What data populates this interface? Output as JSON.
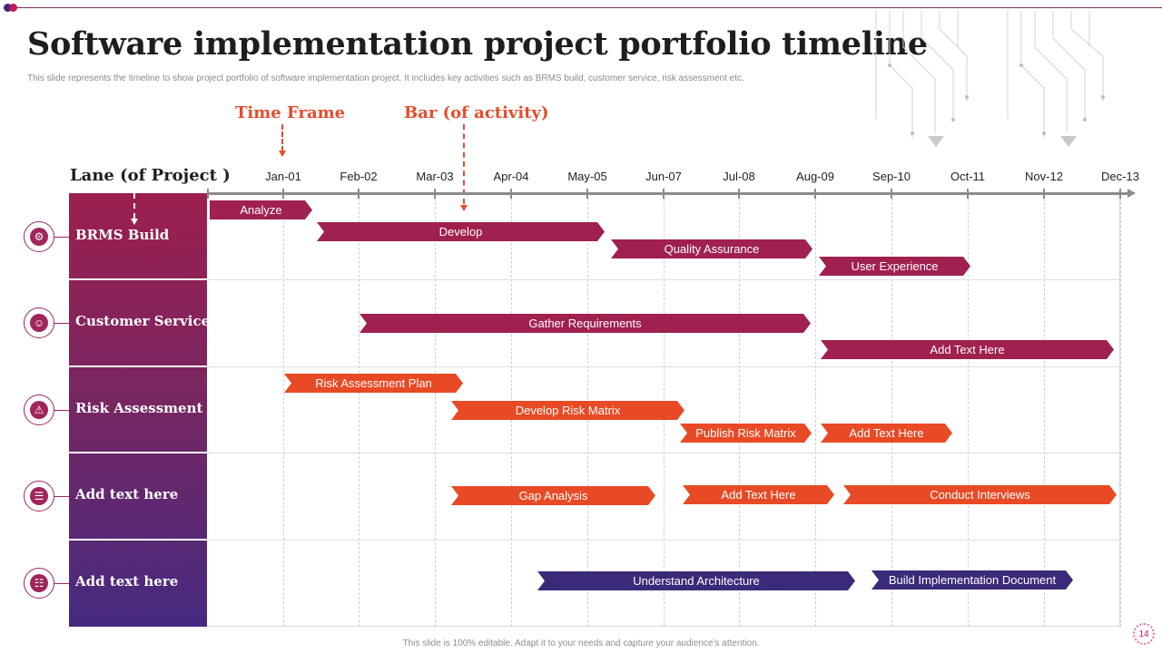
{
  "slide": {
    "title": "Software implementation project portfolio timeline",
    "subtitle": "This slide represents the timeline  to show project portfolio of software implementation  project. It includes key activities such as BRMS  build,  customer service, risk assessment etc.",
    "footer": "This slide is 100% editable.  Adapt it to your needs and capture your audience’s attention.",
    "page_number": "14"
  },
  "callouts": {
    "time_frame": "Time Frame",
    "bar_of_activity": "Bar (of activity)",
    "lane_of_project": "Lane (of Project )"
  },
  "timeline": {
    "months": [
      "Jan-01",
      "Feb-02",
      "Mar-03",
      "Apr-04",
      "May-05",
      "Jun-07",
      "Jul-08",
      "Aug-09",
      "Sep-10",
      "Oct-11",
      "Nov-12",
      "Dec-13"
    ]
  },
  "lanes": [
    {
      "label": "BRMS Build",
      "icon": "gear-icon"
    },
    {
      "label": "Customer Service",
      "icon": "user-icon"
    },
    {
      "label": "Risk Assessment",
      "icon": "warning-icon"
    },
    {
      "label": "Add text here",
      "icon": "document-icon"
    },
    {
      "label": "Add text here",
      "icon": "clipboard-icon"
    }
  ],
  "bars": [
    {
      "lane": 0,
      "label": "Analyze",
      "start": "Jan",
      "end": "Jan-01",
      "color": "#a0204f"
    },
    {
      "lane": 0,
      "label": "Develop",
      "start": "Jan-01",
      "end": "May-05",
      "color": "#a0204f"
    },
    {
      "lane": 0,
      "label": "Quality Assurance",
      "start": "May-05",
      "end": "Aug-09",
      "color": "#a0204f"
    },
    {
      "lane": 0,
      "label": "User Experience",
      "start": "Aug-09",
      "end": "Oct-11",
      "color": "#a0204f"
    },
    {
      "lane": 1,
      "label": "Gather Requirements",
      "start": "Feb-02",
      "end": "Aug-09",
      "color": "#a0204f"
    },
    {
      "lane": 1,
      "label": "Add Text Here",
      "start": "Aug-09",
      "end": "Dec-13",
      "color": "#a0204f"
    },
    {
      "lane": 2,
      "label": "Risk Assessment Plan",
      "start": "Jan-01",
      "end": "Mar-03",
      "color": "#e84a25"
    },
    {
      "lane": 2,
      "label": "Develop  Risk Matrix",
      "start": "Mar-03",
      "end": "Jun-07",
      "color": "#e84a25"
    },
    {
      "lane": 2,
      "label": "Publish Risk Matrix",
      "start": "Jun-07",
      "end": "Aug-09",
      "color": "#e84a25"
    },
    {
      "lane": 2,
      "label": "Add Text Here",
      "start": "Aug-09",
      "end": "Oct-11",
      "color": "#e84a25"
    },
    {
      "lane": 3,
      "label": "Gap Analysis",
      "start": "Mar-03",
      "end": "Jun-07",
      "color": "#e84a25"
    },
    {
      "lane": 3,
      "label": "Add Text Here",
      "start": "Jun-07",
      "end": "Aug-09",
      "color": "#e84a25"
    },
    {
      "lane": 3,
      "label": "Conduct Interviews",
      "start": "Aug-09",
      "end": "Dec-13",
      "color": "#e84a25"
    },
    {
      "lane": 4,
      "label": "Understand Architecture",
      "start": "Apr-04",
      "end": "Aug-09",
      "color": "#3b2a7a"
    },
    {
      "lane": 4,
      "label": "Build Implementation  Document",
      "start": "Aug-09",
      "end": "Nov-12",
      "color": "#3b2a7a"
    }
  ],
  "colors": {
    "accent_maroon": "#a0204f",
    "accent_orange": "#e84a25",
    "accent_indigo": "#3b2a7a",
    "callout": "#e54d2a"
  }
}
